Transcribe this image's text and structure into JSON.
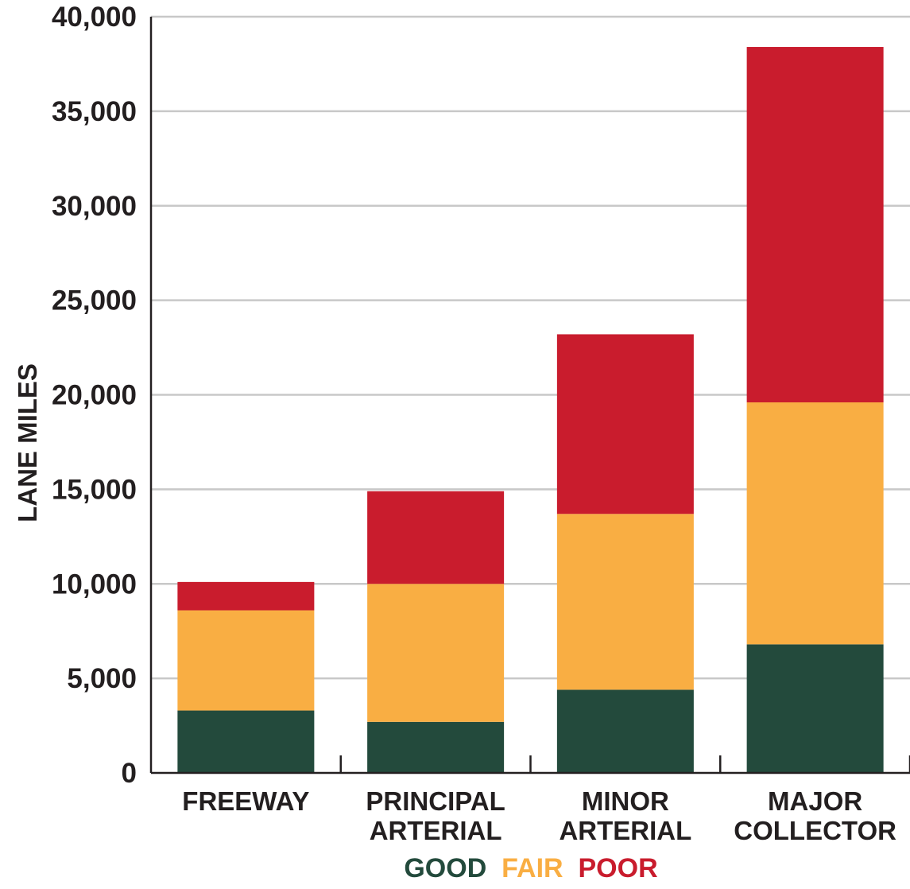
{
  "chart_data": {
    "type": "bar",
    "stacked": true,
    "title": "",
    "xlabel": "",
    "ylabel": "LANE MILES",
    "ylim": [
      0,
      40000
    ],
    "yticks": [
      "0",
      "5,000",
      "10,000",
      "15,000",
      "20,000",
      "25,000",
      "30,000",
      "35,000",
      "40,000"
    ],
    "ytick_values": [
      0,
      5000,
      10000,
      15000,
      20000,
      25000,
      30000,
      35000,
      40000
    ],
    "grid": true,
    "categories": [
      [
        "FREEWAY"
      ],
      [
        "PRINCIPAL",
        "ARTERIAL"
      ],
      [
        "MINOR",
        "ARTERIAL"
      ],
      [
        "MAJOR",
        "COLLECTOR"
      ]
    ],
    "series": [
      {
        "name": "GOOD",
        "color": "#234a3c",
        "values": [
          3300,
          2700,
          4400,
          6800
        ]
      },
      {
        "name": "FAIR",
        "color": "#f9ae43",
        "values": [
          5300,
          7300,
          9300,
          12800
        ]
      },
      {
        "name": "POOR",
        "color": "#c91c2d",
        "values": [
          1500,
          4900,
          9500,
          18800
        ]
      }
    ],
    "legend_position": "bottom-center"
  }
}
